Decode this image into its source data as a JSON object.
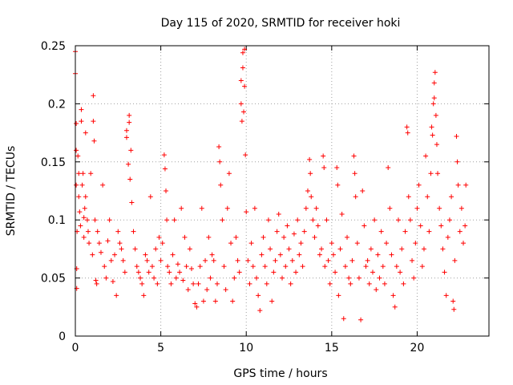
{
  "chart_data": {
    "type": "scatter",
    "title": "Day 115 of 2020, SRMTID for receiver hoki",
    "xlabel": "GPS time / hours",
    "ylabel": "SRMTID / TECUs",
    "xlim": [
      0,
      24.2
    ],
    "ylim": [
      0,
      0.25
    ],
    "xticks": [
      0,
      5,
      10,
      15,
      20
    ],
    "xtick_labels": [
      "0",
      "5",
      "10",
      "15",
      "20"
    ],
    "yticks": [
      0,
      0.05,
      0.1,
      0.15,
      0.2,
      0.25
    ],
    "ytick_labels": [
      "0",
      "0.05",
      "0.1",
      "0.15",
      "0.2",
      "0.25"
    ],
    "grid": true,
    "marker": "+",
    "color": "#ff0000",
    "series": [
      {
        "name": "SRMTID",
        "points": [
          [
            0.0,
            0.245
          ],
          [
            0.0,
            0.226
          ],
          [
            0.05,
            0.183
          ],
          [
            0.05,
            0.16
          ],
          [
            0.05,
            0.13
          ],
          [
            0.08,
            0.041
          ],
          [
            0.08,
            0.058
          ],
          [
            0.1,
            0.09
          ],
          [
            0.15,
            0.155
          ],
          [
            0.2,
            0.14
          ],
          [
            0.2,
            0.12
          ],
          [
            0.25,
            0.107
          ],
          [
            0.3,
            0.095
          ],
          [
            0.35,
            0.195
          ],
          [
            0.35,
            0.185
          ],
          [
            0.4,
            0.13
          ],
          [
            0.45,
            0.14
          ],
          [
            0.5,
            0.102
          ],
          [
            0.5,
            0.085
          ],
          [
            0.55,
            0.11
          ],
          [
            0.6,
            0.175
          ],
          [
            0.6,
            0.12
          ],
          [
            0.7,
            0.1
          ],
          [
            0.75,
            0.09
          ],
          [
            0.8,
            0.08
          ],
          [
            0.9,
            0.14
          ],
          [
            1.0,
            0.07
          ],
          [
            1.05,
            0.207
          ],
          [
            1.05,
            0.185
          ],
          [
            1.1,
            0.168
          ],
          [
            1.15,
            0.1
          ],
          [
            1.2,
            0.048
          ],
          [
            1.25,
            0.045
          ],
          [
            1.3,
            0.09
          ],
          [
            1.4,
            0.08
          ],
          [
            1.5,
            0.072
          ],
          [
            1.6,
            0.13
          ],
          [
            1.7,
            0.06
          ],
          [
            1.8,
            0.05
          ],
          [
            1.9,
            0.082
          ],
          [
            2.0,
            0.1
          ],
          [
            2.1,
            0.065
          ],
          [
            2.2,
            0.047
          ],
          [
            2.3,
            0.07
          ],
          [
            2.4,
            0.035
          ],
          [
            2.5,
            0.09
          ],
          [
            2.6,
            0.08
          ],
          [
            2.7,
            0.075
          ],
          [
            2.8,
            0.065
          ],
          [
            2.9,
            0.055
          ],
          [
            3.0,
            0.177
          ],
          [
            3.0,
            0.171
          ],
          [
            3.1,
            0.148
          ],
          [
            3.15,
            0.19
          ],
          [
            3.15,
            0.184
          ],
          [
            3.2,
            0.135
          ],
          [
            3.25,
            0.16
          ],
          [
            3.3,
            0.115
          ],
          [
            3.4,
            0.09
          ],
          [
            3.5,
            0.075
          ],
          [
            3.6,
            0.06
          ],
          [
            3.7,
            0.055
          ],
          [
            3.8,
            0.05
          ],
          [
            3.9,
            0.045
          ],
          [
            4.0,
            0.035
          ],
          [
            4.1,
            0.07
          ],
          [
            4.2,
            0.065
          ],
          [
            4.3,
            0.055
          ],
          [
            4.4,
            0.12
          ],
          [
            4.5,
            0.06
          ],
          [
            4.6,
            0.05
          ],
          [
            4.7,
            0.075
          ],
          [
            4.8,
            0.045
          ],
          [
            4.9,
            0.085
          ],
          [
            5.0,
            0.065
          ],
          [
            5.1,
            0.08
          ],
          [
            5.2,
            0.156
          ],
          [
            5.25,
            0.144
          ],
          [
            5.3,
            0.125
          ],
          [
            5.35,
            0.1
          ],
          [
            5.4,
            0.06
          ],
          [
            5.5,
            0.055
          ],
          [
            5.6,
            0.045
          ],
          [
            5.7,
            0.07
          ],
          [
            5.8,
            0.1
          ],
          [
            5.9,
            0.05
          ],
          [
            6.0,
            0.062
          ],
          [
            6.1,
            0.055
          ],
          [
            6.2,
            0.11
          ],
          [
            6.3,
            0.048
          ],
          [
            6.4,
            0.085
          ],
          [
            6.5,
            0.06
          ],
          [
            6.6,
            0.04
          ],
          [
            6.7,
            0.075
          ],
          [
            6.8,
            0.058
          ],
          [
            6.9,
            0.045
          ],
          [
            7.0,
            0.028
          ],
          [
            7.1,
            0.025
          ],
          [
            7.2,
            0.045
          ],
          [
            7.3,
            0.06
          ],
          [
            7.4,
            0.11
          ],
          [
            7.5,
            0.03
          ],
          [
            7.6,
            0.065
          ],
          [
            7.7,
            0.04
          ],
          [
            7.8,
            0.085
          ],
          [
            7.9,
            0.05
          ],
          [
            8.0,
            0.07
          ],
          [
            8.1,
            0.065
          ],
          [
            8.2,
            0.03
          ],
          [
            8.3,
            0.045
          ],
          [
            8.4,
            0.163
          ],
          [
            8.45,
            0.15
          ],
          [
            8.5,
            0.13
          ],
          [
            8.6,
            0.1
          ],
          [
            8.7,
            0.06
          ],
          [
            8.8,
            0.04
          ],
          [
            8.9,
            0.11
          ],
          [
            9.0,
            0.14
          ],
          [
            9.1,
            0.08
          ],
          [
            9.2,
            0.03
          ],
          [
            9.3,
            0.05
          ],
          [
            9.4,
            0.085
          ],
          [
            9.5,
            0.065
          ],
          [
            9.6,
            0.055
          ],
          [
            9.7,
            0.22
          ],
          [
            9.7,
            0.2
          ],
          [
            9.75,
            0.185
          ],
          [
            9.8,
            0.244
          ],
          [
            9.8,
            0.231
          ],
          [
            9.85,
            0.193
          ],
          [
            9.9,
            0.247
          ],
          [
            9.9,
            0.215
          ],
          [
            9.95,
            0.156
          ],
          [
            10.0,
            0.107
          ],
          [
            10.1,
            0.065
          ],
          [
            10.2,
            0.045
          ],
          [
            10.3,
            0.08
          ],
          [
            10.4,
            0.06
          ],
          [
            10.5,
            0.11
          ],
          [
            10.6,
            0.05
          ],
          [
            10.7,
            0.035
          ],
          [
            10.8,
            0.022
          ],
          [
            10.9,
            0.07
          ],
          [
            11.0,
            0.085
          ],
          [
            11.1,
            0.06
          ],
          [
            11.2,
            0.045
          ],
          [
            11.3,
            0.1
          ],
          [
            11.4,
            0.075
          ],
          [
            11.5,
            0.03
          ],
          [
            11.6,
            0.055
          ],
          [
            11.7,
            0.065
          ],
          [
            11.8,
            0.09
          ],
          [
            11.9,
            0.105
          ],
          [
            12.0,
            0.07
          ],
          [
            12.1,
            0.05
          ],
          [
            12.2,
            0.085
          ],
          [
            12.3,
            0.06
          ],
          [
            12.4,
            0.095
          ],
          [
            12.5,
            0.075
          ],
          [
            12.6,
            0.045
          ],
          [
            12.7,
            0.065
          ],
          [
            12.8,
            0.088
          ],
          [
            12.9,
            0.055
          ],
          [
            13.0,
            0.1
          ],
          [
            13.1,
            0.07
          ],
          [
            13.2,
            0.08
          ],
          [
            13.3,
            0.06
          ],
          [
            13.4,
            0.09
          ],
          [
            13.5,
            0.11
          ],
          [
            13.6,
            0.125
          ],
          [
            13.7,
            0.152
          ],
          [
            13.75,
            0.14
          ],
          [
            13.8,
            0.12
          ],
          [
            13.9,
            0.1
          ],
          [
            14.0,
            0.085
          ],
          [
            14.1,
            0.11
          ],
          [
            14.2,
            0.095
          ],
          [
            14.3,
            0.07
          ],
          [
            14.4,
            0.075
          ],
          [
            14.5,
            0.155
          ],
          [
            14.55,
            0.145
          ],
          [
            14.6,
            0.06
          ],
          [
            14.7,
            0.1
          ],
          [
            14.8,
            0.065
          ],
          [
            14.9,
            0.045
          ],
          [
            15.0,
            0.08
          ],
          [
            15.1,
            0.07
          ],
          [
            15.2,
            0.055
          ],
          [
            15.3,
            0.145
          ],
          [
            15.35,
            0.13
          ],
          [
            15.4,
            0.035
          ],
          [
            15.5,
            0.075
          ],
          [
            15.6,
            0.105
          ],
          [
            15.7,
            0.015
          ],
          [
            15.8,
            0.06
          ],
          [
            15.9,
            0.085
          ],
          [
            16.0,
            0.05
          ],
          [
            16.1,
            0.045
          ],
          [
            16.2,
            0.065
          ],
          [
            16.3,
            0.155
          ],
          [
            16.35,
            0.14
          ],
          [
            16.4,
            0.12
          ],
          [
            16.5,
            0.08
          ],
          [
            16.6,
            0.05
          ],
          [
            16.7,
            0.014
          ],
          [
            16.8,
            0.125
          ],
          [
            16.9,
            0.095
          ],
          [
            17.0,
            0.06
          ],
          [
            17.1,
            0.065
          ],
          [
            17.2,
            0.045
          ],
          [
            17.3,
            0.075
          ],
          [
            17.4,
            0.055
          ],
          [
            17.5,
            0.1
          ],
          [
            17.6,
            0.04
          ],
          [
            17.7,
            0.07
          ],
          [
            17.8,
            0.05
          ],
          [
            17.9,
            0.09
          ],
          [
            18.0,
            0.06
          ],
          [
            18.1,
            0.045
          ],
          [
            18.2,
            0.08
          ],
          [
            18.3,
            0.145
          ],
          [
            18.4,
            0.11
          ],
          [
            18.5,
            0.07
          ],
          [
            18.6,
            0.035
          ],
          [
            18.7,
            0.025
          ],
          [
            18.8,
            0.06
          ],
          [
            18.9,
            0.1
          ],
          [
            19.0,
            0.055
          ],
          [
            19.1,
            0.075
          ],
          [
            19.2,
            0.045
          ],
          [
            19.3,
            0.09
          ],
          [
            19.4,
            0.18
          ],
          [
            19.45,
            0.175
          ],
          [
            19.5,
            0.12
          ],
          [
            19.6,
            0.1
          ],
          [
            19.7,
            0.065
          ],
          [
            19.8,
            0.05
          ],
          [
            19.9,
            0.08
          ],
          [
            20.0,
            0.11
          ],
          [
            20.1,
            0.13
          ],
          [
            20.2,
            0.095
          ],
          [
            20.3,
            0.06
          ],
          [
            20.4,
            0.075
          ],
          [
            20.5,
            0.155
          ],
          [
            20.6,
            0.12
          ],
          [
            20.7,
            0.09
          ],
          [
            20.8,
            0.14
          ],
          [
            20.85,
            0.18
          ],
          [
            20.9,
            0.173
          ],
          [
            20.95,
            0.2
          ],
          [
            21.0,
            0.218
          ],
          [
            21.0,
            0.205
          ],
          [
            21.05,
            0.227
          ],
          [
            21.1,
            0.19
          ],
          [
            21.15,
            0.165
          ],
          [
            21.2,
            0.14
          ],
          [
            21.3,
            0.11
          ],
          [
            21.4,
            0.095
          ],
          [
            21.5,
            0.075
          ],
          [
            21.6,
            0.055
          ],
          [
            21.7,
            0.035
          ],
          [
            21.8,
            0.085
          ],
          [
            21.9,
            0.1
          ],
          [
            22.0,
            0.12
          ],
          [
            22.1,
            0.03
          ],
          [
            22.15,
            0.023
          ],
          [
            22.2,
            0.065
          ],
          [
            22.3,
            0.172
          ],
          [
            22.35,
            0.15
          ],
          [
            22.4,
            0.13
          ],
          [
            22.5,
            0.09
          ],
          [
            22.6,
            0.11
          ],
          [
            22.7,
            0.08
          ],
          [
            22.8,
            0.095
          ],
          [
            22.85,
            0.13
          ]
        ]
      }
    ]
  }
}
